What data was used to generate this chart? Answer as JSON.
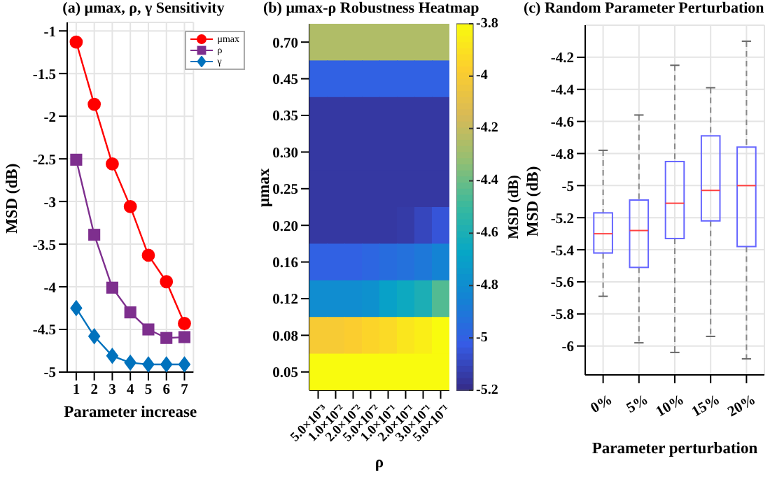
{
  "chart_data": [
    {
      "type": "line",
      "title": "(a) μmax, ρ, γ Sensitivity",
      "xlabel": "Parameter increase",
      "ylabel": "MSD (dB)",
      "x": [
        1,
        2,
        3,
        4,
        5,
        6,
        7
      ],
      "xlim": [
        0.5,
        7.5
      ],
      "xticks": [
        1,
        2,
        3,
        4,
        5,
        6,
        7
      ],
      "ylim": [
        -5,
        -0.9
      ],
      "yticks": [
        -5,
        -4.5,
        -4,
        -3.5,
        -3,
        -2.5,
        -2,
        -1.5,
        -1
      ],
      "grid": true,
      "legend": "top right",
      "line_style": "solid",
      "series": [
        {
          "name": "μmax",
          "color": "#ff0000",
          "marker": "circle",
          "values": [
            -1.13,
            -1.86,
            -2.56,
            -3.06,
            -3.63,
            -3.94,
            -4.43
          ]
        },
        {
          "name": "ρ",
          "color": "#7e2f8e",
          "marker": "square",
          "values": [
            -2.51,
            -3.39,
            -4.01,
            -4.3,
            -4.5,
            -4.6,
            -4.59
          ]
        },
        {
          "name": "γ",
          "color": "#0072bd",
          "marker": "diamond",
          "values": [
            -4.25,
            -4.58,
            -4.81,
            -4.89,
            -4.91,
            -4.91,
            -4.91
          ]
        }
      ]
    },
    {
      "type": "heatmap",
      "title": "(b) μmax-ρ Robustness Heatmap",
      "xlabel": "ρ",
      "ylabel": "μmax",
      "clabel": "MSD (dB)",
      "clim": [
        -5.2,
        -3.8
      ],
      "cticks": [
        -5.2,
        -5,
        -4.8,
        -4.6,
        -4.4,
        -4.2,
        -4,
        -3.8
      ],
      "categories": [
        "5.0×10⁻³",
        "1.0×10⁻²",
        "2.0×10⁻²",
        "5.0×10⁻²",
        "1.0×10⁻¹",
        "2.0×10⁻¹",
        "3.0×10⁻¹",
        "5.0×10⁻¹"
      ],
      "y_categories": [
        "0.70",
        "0.45",
        "0.35",
        "0.30",
        "0.25",
        "0.20",
        "0.16",
        "0.12",
        "0.08",
        "0.05"
      ],
      "cells": [
        [
          -4.25,
          -4.25,
          -4.25,
          -4.25,
          -4.25,
          -4.25,
          -4.25,
          -4.25
        ],
        [
          -5.0,
          -5.0,
          -5.0,
          -5.0,
          -5.0,
          -5.0,
          -5.0,
          -5.0
        ],
        [
          -5.15,
          -5.15,
          -5.15,
          -5.15,
          -5.15,
          -5.15,
          -5.15,
          -5.15
        ],
        [
          -5.15,
          -5.15,
          -5.15,
          -5.15,
          -5.15,
          -5.15,
          -5.15,
          -5.15
        ],
        [
          -5.15,
          -5.15,
          -5.15,
          -5.15,
          -5.15,
          -5.15,
          -5.15,
          -5.15
        ],
        [
          -5.15,
          -5.15,
          -5.15,
          -5.15,
          -5.15,
          -5.14,
          -5.1,
          -5.05
        ],
        [
          -5.0,
          -5.0,
          -5.0,
          -4.98,
          -4.95,
          -4.93,
          -4.9,
          -4.85
        ],
        [
          -4.8,
          -4.8,
          -4.8,
          -4.78,
          -4.7,
          -4.65,
          -4.6,
          -4.45
        ],
        [
          -4.0,
          -4.0,
          -3.98,
          -3.95,
          -3.93,
          -3.88,
          -3.85,
          -3.8
        ],
        [
          -3.8,
          -3.8,
          -3.8,
          -3.8,
          -3.8,
          -3.8,
          -3.8,
          -3.8
        ]
      ]
    },
    {
      "type": "box",
      "title": "(c) Random Parameter Perturbation",
      "xlabel": "Parameter perturbation",
      "ylabel": "MSD (dB)",
      "categories": [
        "0%",
        "5%",
        "10%",
        "15%",
        "20%"
      ],
      "ylim": [
        -6.18,
        -4
      ],
      "yticks": [
        -6,
        -5.8,
        -5.6,
        -5.4,
        -5.2,
        -5,
        -4.8,
        -4.6,
        -4.4,
        -4.2
      ],
      "grid": true,
      "series": [
        {
          "color": "#6666ff",
          "boxes": [
            {
              "low": -5.69,
              "q1": -5.42,
              "median": -5.3,
              "q3": -5.17,
              "high": -4.78
            },
            {
              "low": -5.98,
              "q1": -5.51,
              "median": -5.28,
              "q3": -5.09,
              "high": -4.56
            },
            {
              "low": -6.04,
              "q1": -5.33,
              "median": -5.11,
              "q3": -4.85,
              "high": -4.25
            },
            {
              "low": -5.94,
              "q1": -5.22,
              "median": -5.03,
              "q3": -4.69,
              "high": -4.39
            },
            {
              "low": -6.08,
              "q1": -5.38,
              "median": -5.0,
              "q3": -4.76,
              "high": -4.1
            }
          ]
        }
      ]
    }
  ]
}
